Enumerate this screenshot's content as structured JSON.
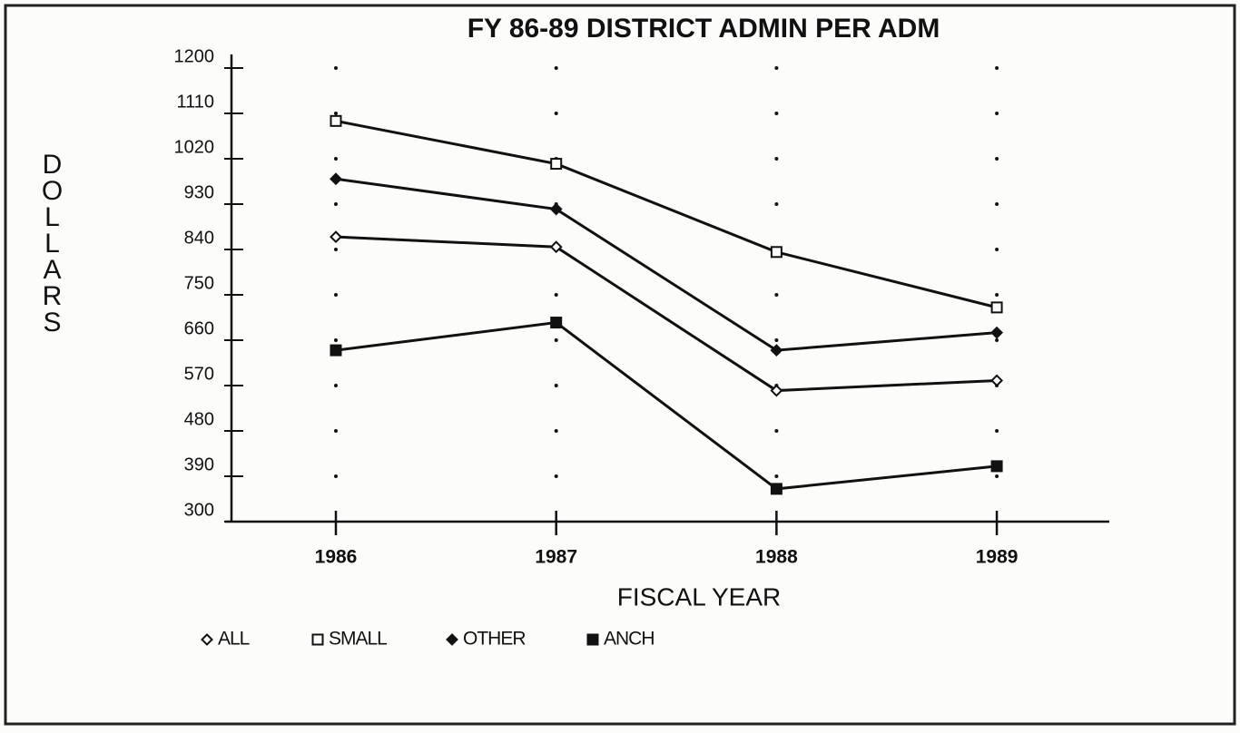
{
  "chart_data": {
    "type": "line",
    "title": "FY 86-89 DISTRICT ADMIN PER ADM",
    "y_label": "DOLLARS",
    "x_label": "FISCAL YEAR",
    "categories": [
      "1986",
      "1987",
      "1988",
      "1989"
    ],
    "ylim": [
      300,
      1200
    ],
    "yticks": [
      300,
      390,
      480,
      570,
      660,
      750,
      840,
      930,
      1020,
      1110,
      1200
    ],
    "grid": true,
    "series": [
      {
        "name": "ALL",
        "color": "#111111",
        "marker": "diamond-open",
        "values": [
          865,
          845,
          560,
          580
        ]
      },
      {
        "name": "SMALL",
        "color": "#111111",
        "marker": "square-open",
        "values": [
          1095,
          1010,
          835,
          725
        ]
      },
      {
        "name": "OTHER",
        "color": "#111111",
        "marker": "diamond-filled",
        "values": [
          980,
          920,
          640,
          675
        ]
      },
      {
        "name": "ANCH",
        "color": "#111111",
        "marker": "square-filled",
        "values": [
          640,
          695,
          365,
          410
        ]
      }
    ]
  }
}
